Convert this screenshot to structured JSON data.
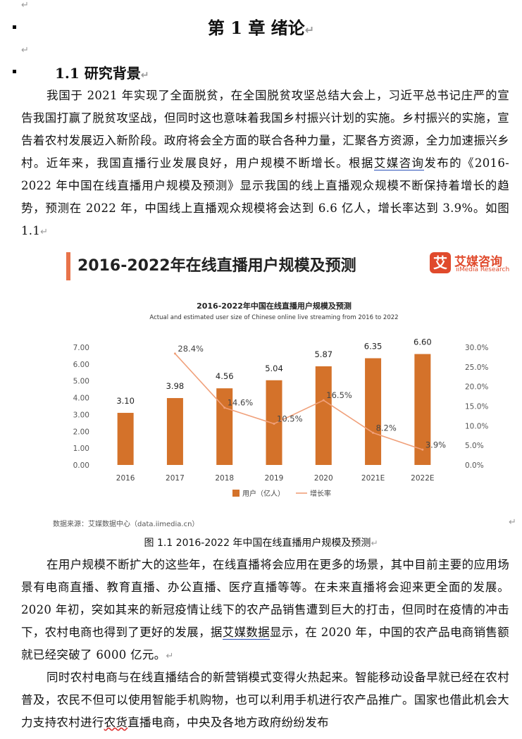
{
  "chapter_title": "第 1 章  绪论",
  "section_title": "1.1 研究背景",
  "para1": {
    "part1": "我国于 2021 年实现了全面脱贫，在全国脱贫攻坚总结大会上，习近平总书记庄严的宣告我国打赢了脱贫攻坚战，但同时这也意味着我国乡村振兴计划的实施。乡村振兴的实施，宣告着农村发展迈入新阶段。政府将会全方面的联合各种力量，汇聚各方资源，全力加速振兴乡村。近年来，我国直播行业发展良好，用户规模不断增长。根据",
    "link": "艾媒咨询",
    "part2": "发布的《2016-2022 年中国在线直播用户规模及预测》显示我国的线上直播观众规模不断保持着增长的趋势，预测在 2022 年，中国线上直播观众规模将会达到 6.6 亿人，增长率达到 3.9%。如图 1.1"
  },
  "figure": {
    "header_title": "2016-2022年在线直播用户规模及预测",
    "logo_mark": "艾",
    "logo_name": "艾媒咨询",
    "logo_en": "iiMedia Research",
    "source": "数据来源：艾媒数据中心（data.iimedia.cn）"
  },
  "chart_data": {
    "type": "bar",
    "title": "2016-2022年中国在线直播用户规模及预测",
    "subtitle": "Actual and estimated user size of Chinese online live streaming from 2016 to 2022",
    "categories": [
      "2016",
      "2017",
      "2018",
      "2019",
      "2020",
      "2021E",
      "2022E"
    ],
    "series": [
      {
        "name": "用户（亿人）",
        "type": "bar",
        "axis": "left",
        "color": "#d4722a",
        "values": [
          3.1,
          3.98,
          4.56,
          5.04,
          5.87,
          6.35,
          6.6
        ],
        "labels": [
          "3.10",
          "3.98",
          "4.56",
          "5.04",
          "5.87",
          "6.35",
          "6.60"
        ]
      },
      {
        "name": "增长率",
        "type": "line",
        "axis": "right",
        "color": "#f0a07a",
        "values": [
          null,
          28.4,
          14.6,
          10.5,
          16.5,
          8.2,
          3.9
        ],
        "labels": [
          "",
          "28.4%",
          "14.6%",
          "10.5%",
          "16.5%",
          "8.2%",
          "3.9%"
        ]
      }
    ],
    "ylim_left": [
      0,
      7
    ],
    "ylim_right": [
      0,
      30
    ],
    "yticks_left": [
      "0.00",
      "1.00",
      "2.00",
      "3.00",
      "4.00",
      "5.00",
      "6.00",
      "7.00"
    ],
    "yticks_right": [
      "0.0%",
      "5.0%",
      "10.0%",
      "15.0%",
      "20.0%",
      "25.0%",
      "30.0%"
    ],
    "legend_position": "bottom",
    "grid": false
  },
  "caption": "图 1.1 2016-2022 年中国在线直播用户规模及预测",
  "para2": {
    "part1": "在用户规模不断扩大的这些年，在线直播将会应用在更多的场景，其中目前主要的应用场景有电商直播、教育直播、办公直播、医疗直播等等。在未来直播将会迎来更全面的发展。2020 年初，突如其来的新冠疫情让线下的农产品销售遭到巨大的打击，但同时在疫情的冲击下，农村电商也得到了更好的发展，据",
    "link": "艾媒数据",
    "part2": "显示，在 2020 年，中国的农产品电商销售额就已经突破了 6000 亿元。"
  },
  "para3": {
    "part1": "同时农村电商与在线直播结合的新营销模式变得火热起来。智能移动设备早就已经在农村普及，农民不但可以使用智能手机购物，也可以利用手机进行农产品推广。国家也借此机会大力支持农村进行",
    "wavy": "农货",
    "part2": "直播电商，中央及各地方政府纷纷发布"
  },
  "marks": {
    "return": "↵"
  }
}
